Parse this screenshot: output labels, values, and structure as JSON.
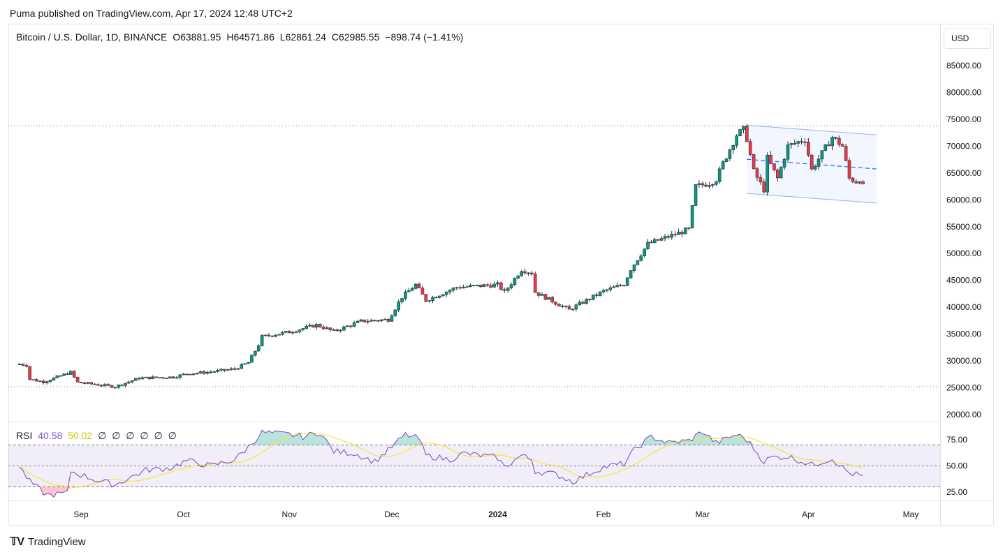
{
  "header": {
    "published": "Puma published on TradingView.com, Apr 17, 2024 12:48 UTC+2"
  },
  "legend": {
    "symbol": "Bitcoin / U.S. Dollar, 1D, BINANCE",
    "open": "O63881.95",
    "high": "H64571.86",
    "low": "L62861.24",
    "close": "C62985.55",
    "change": "−898.74 (−1.41%)"
  },
  "currency_button": "USD",
  "rsi_legend": {
    "name": "RSI",
    "value": "40.58",
    "ma": "50.02",
    "placeholders": [
      "∅",
      "∅",
      "∅",
      "∅",
      "∅",
      "∅"
    ]
  },
  "footer": {
    "brand": "TradingView"
  },
  "colors": {
    "up": "#089981",
    "down": "#f23645",
    "rsi_line": "#7e57c2",
    "rsi_ma": "#f7e43a",
    "channel": "#2962ff"
  },
  "chart_data": {
    "type": "candlestick",
    "price_axis": {
      "ticks": [
        "85000.00",
        "80000.00",
        "75000.00",
        "70000.00",
        "65000.00",
        "60000.00",
        "55000.00",
        "50000.00",
        "45000.00",
        "40000.00",
        "35000.00",
        "30000.00",
        "25000.00",
        "20000.00"
      ],
      "range": [
        20000,
        87000
      ]
    },
    "rsi_axis": {
      "ticks": [
        "75.00",
        "50.00",
        "25.00"
      ],
      "range": [
        15,
        90
      ],
      "bands": [
        30,
        70
      ]
    },
    "x_labels": [
      "Sep",
      "Oct",
      "Nov",
      "Dec",
      "2024",
      "Feb",
      "Mar",
      "Apr",
      "May"
    ],
    "x_label_dates": [
      "2023-09-01",
      "2023-10-01",
      "2023-11-01",
      "2023-12-01",
      "2024-01-01",
      "2024-02-01",
      "2024-03-01",
      "2024-04-01",
      "2024-05-01"
    ],
    "horizontal_lines": [
      73800,
      25200
    ],
    "channel": {
      "start": "2024-03-14",
      "end": "2024-04-21",
      "upper": [
        73900,
        72100
      ],
      "lower": [
        61200,
        59400
      ]
    },
    "anchors": [
      [
        "2023-08-14",
        29400
      ],
      [
        "2023-08-16",
        29200
      ],
      [
        "2023-08-17",
        26600
      ],
      [
        "2023-08-21",
        26100
      ],
      [
        "2023-08-29",
        27900
      ],
      [
        "2023-08-31",
        26000
      ],
      [
        "2023-09-11",
        25200
      ],
      [
        "2023-09-18",
        26800
      ],
      [
        "2023-09-28",
        27000
      ],
      [
        "2023-10-02",
        27600
      ],
      [
        "2023-10-08",
        27900
      ],
      [
        "2023-10-16",
        28500
      ],
      [
        "2023-10-20",
        29700
      ],
      [
        "2023-10-23",
        33000
      ],
      [
        "2023-10-24",
        34500
      ],
      [
        "2023-11-01",
        35400
      ],
      [
        "2023-11-09",
        36700
      ],
      [
        "2023-11-14",
        35500
      ],
      [
        "2023-11-22",
        37400
      ],
      [
        "2023-11-30",
        37700
      ],
      [
        "2023-12-04",
        41900
      ],
      [
        "2023-12-08",
        44200
      ],
      [
        "2023-12-11",
        41300
      ],
      [
        "2023-12-20",
        43700
      ],
      [
        "2024-01-01",
        44200
      ],
      [
        "2024-01-03",
        42800
      ],
      [
        "2024-01-08",
        47000
      ],
      [
        "2024-01-11",
        46400
      ],
      [
        "2024-01-12",
        42800
      ],
      [
        "2024-01-22",
        39500
      ],
      [
        "2024-01-23",
        39900
      ],
      [
        "2024-02-01",
        43000
      ],
      [
        "2024-02-07",
        44300
      ],
      [
        "2024-02-09",
        47100
      ],
      [
        "2024-02-14",
        51800
      ],
      [
        "2024-02-26",
        54500
      ],
      [
        "2024-02-28",
        62500
      ],
      [
        "2024-03-03",
        63100
      ],
      [
        "2024-03-05",
        63800
      ],
      [
        "2024-03-07",
        66800
      ],
      [
        "2024-03-11",
        72100
      ],
      [
        "2024-03-13",
        73100
      ],
      [
        "2024-03-14",
        71400
      ],
      [
        "2024-03-16",
        65300
      ],
      [
        "2024-03-19",
        61900
      ],
      [
        "2024-03-20",
        67800
      ],
      [
        "2024-03-23",
        64000
      ],
      [
        "2024-03-26",
        70000
      ],
      [
        "2024-03-31",
        71300
      ],
      [
        "2024-04-02",
        65600
      ],
      [
        "2024-04-08",
        71700
      ],
      [
        "2024-04-11",
        70000
      ],
      [
        "2024-04-13",
        64000
      ],
      [
        "2024-04-15",
        63400
      ],
      [
        "2024-04-16",
        63900
      ],
      [
        "2024-04-17",
        62985
      ]
    ],
    "rsi_anchors": [
      [
        "2023-08-14",
        49
      ],
      [
        "2023-08-17",
        35
      ],
      [
        "2023-08-22",
        22
      ],
      [
        "2023-08-28",
        24
      ],
      [
        "2023-08-29",
        45
      ],
      [
        "2023-09-05",
        37
      ],
      [
        "2023-09-11",
        32
      ],
      [
        "2023-09-20",
        46
      ],
      [
        "2023-09-27",
        48
      ],
      [
        "2023-10-02",
        55
      ],
      [
        "2023-10-09",
        50
      ],
      [
        "2023-10-16",
        56
      ],
      [
        "2023-10-20",
        68
      ],
      [
        "2023-10-24",
        82
      ],
      [
        "2023-11-01",
        80
      ],
      [
        "2023-11-05",
        78
      ],
      [
        "2023-11-10",
        82
      ],
      [
        "2023-11-14",
        64
      ],
      [
        "2023-11-20",
        62
      ],
      [
        "2023-11-26",
        54
      ],
      [
        "2023-12-01",
        68
      ],
      [
        "2023-12-05",
        80
      ],
      [
        "2023-12-09",
        76
      ],
      [
        "2023-12-11",
        60
      ],
      [
        "2023-12-18",
        56
      ],
      [
        "2023-12-22",
        62
      ],
      [
        "2024-01-01",
        58
      ],
      [
        "2024-01-03",
        49
      ],
      [
        "2024-01-08",
        60
      ],
      [
        "2024-01-11",
        56
      ],
      [
        "2024-01-12",
        45
      ],
      [
        "2024-01-18",
        42
      ],
      [
        "2024-01-23",
        35
      ],
      [
        "2024-02-01",
        49
      ],
      [
        "2024-02-07",
        52
      ],
      [
        "2024-02-10",
        65
      ],
      [
        "2024-02-15",
        78
      ],
      [
        "2024-02-20",
        72
      ],
      [
        "2024-02-26",
        74
      ],
      [
        "2024-03-01",
        83
      ],
      [
        "2024-03-05",
        72
      ],
      [
        "2024-03-11",
        80
      ],
      [
        "2024-03-14",
        75
      ],
      [
        "2024-03-19",
        54
      ],
      [
        "2024-03-21",
        58
      ],
      [
        "2024-03-26",
        59
      ],
      [
        "2024-04-02",
        51
      ],
      [
        "2024-04-08",
        57
      ],
      [
        "2024-04-13",
        43
      ],
      [
        "2024-04-17",
        40.58
      ]
    ]
  }
}
